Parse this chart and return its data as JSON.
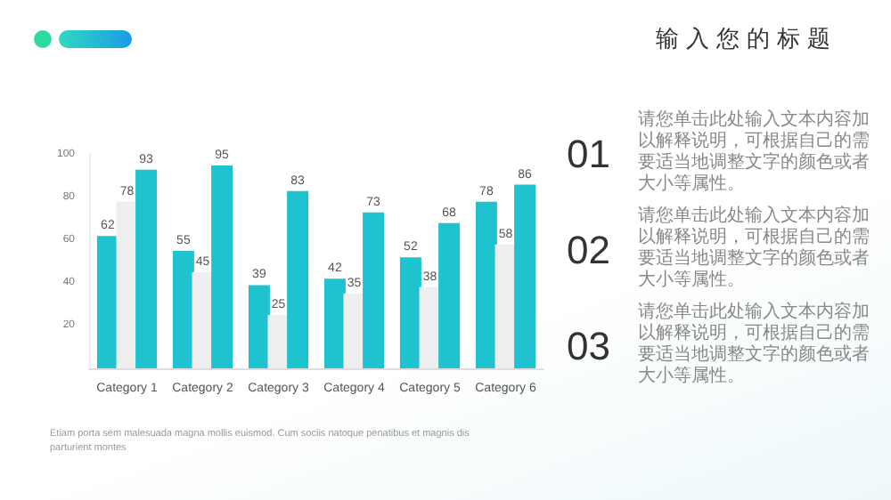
{
  "chart_data": {
    "type": "bar",
    "title": "输入您的标题",
    "categories": [
      "Category 1",
      "Category 2",
      "Category 3",
      "Category 4",
      "Category 5",
      "Category 6"
    ],
    "series": [
      {
        "color": "#1fc3cf",
        "values": [
          62,
          55,
          39,
          42,
          52,
          78
        ]
      },
      {
        "color": "#eeeeee",
        "values": [
          78,
          45,
          25,
          35,
          38,
          58
        ]
      },
      {
        "color": "#1fc3cf",
        "values": [
          93,
          95,
          83,
          73,
          68,
          86
        ]
      }
    ],
    "ylim": [
      0,
      100
    ],
    "yticks": [
      20,
      40,
      60,
      80,
      100
    ],
    "grid": false,
    "data_labels": true,
    "annotations": [
      "01",
      "请您单击此处输入文本内容加以解释说明，可根据自己的需要适当地调整文字的颜色或者大小等属性。",
      "02",
      "请您单击此处输入文本内容加以解释说明，可根据自己的需要适当地调整文字的颜色或者大小等属性。",
      "03",
      "请您单击此处输入文本内容加以解释说明，可根据自己的需要适当地调整文字的颜色或者大小等属性。",
      "Etiam porta sem malesuada magna mollis euismod. Cum sociis natoque penatibus et magnis dis parturient montes"
    ]
  }
}
